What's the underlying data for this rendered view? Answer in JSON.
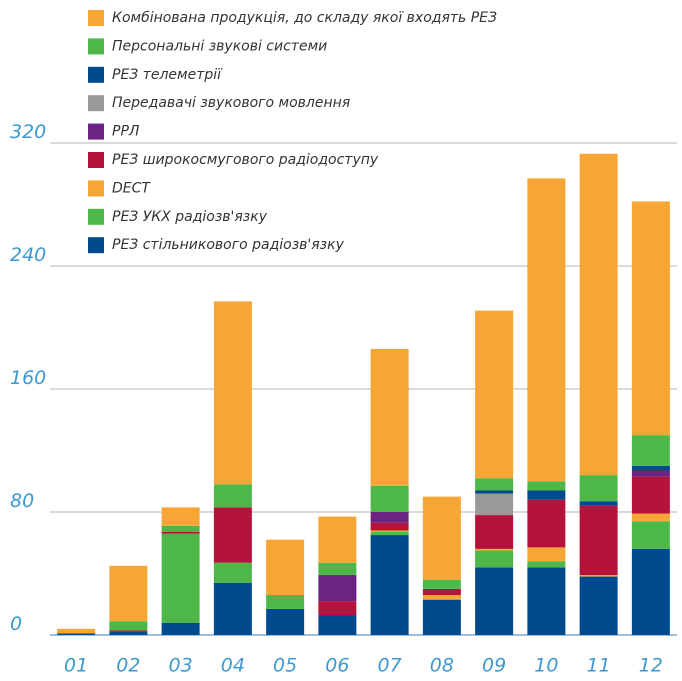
{
  "chart_data": {
    "type": "stacked_bar",
    "categories": [
      "01",
      "02",
      "03",
      "04",
      "05",
      "06",
      "07",
      "08",
      "09",
      "10",
      "11",
      "12"
    ],
    "series": [
      {
        "name": "РЕЗ стільникового радіозв'язку",
        "color": "#004b8d",
        "values": [
          1,
          2,
          8,
          34,
          17,
          13,
          65,
          23,
          44,
          44,
          38,
          56
        ]
      },
      {
        "name": "РЕЗ УКХ радіозв'язку",
        "color": "#4db848",
        "values": [
          0,
          0,
          58,
          13,
          9,
          0,
          2,
          0,
          11,
          4,
          0,
          18
        ]
      },
      {
        "name": "DECT",
        "color": "#f7a535",
        "values": [
          0,
          0,
          0,
          0,
          0,
          0,
          1,
          3,
          1,
          9,
          1,
          5
        ]
      },
      {
        "name": "РЕЗ широкосмугового радіодоступу",
        "color": "#b5123c",
        "values": [
          0,
          1,
          1,
          36,
          0,
          9,
          5,
          4,
          22,
          31,
          45,
          24
        ]
      },
      {
        "name": "РРЛ",
        "color": "#6b2481",
        "values": [
          0,
          0,
          0,
          0,
          0,
          17,
          7,
          0,
          0,
          0,
          0,
          4
        ]
      },
      {
        "name": "Передавачі звукового мовлення",
        "color": "#999999",
        "values": [
          0,
          0,
          0,
          0,
          0,
          0,
          0,
          0,
          14,
          0,
          0,
          0
        ]
      },
      {
        "name": "РЕЗ телеметрії",
        "color": "#004b8d",
        "values": [
          0,
          0,
          0,
          0,
          0,
          0,
          0,
          0,
          2,
          6,
          3,
          3
        ]
      },
      {
        "name": "Персональні звукові системи",
        "color": "#4db848",
        "values": [
          0,
          6,
          4,
          15,
          0,
          8,
          17,
          6,
          8,
          6,
          17,
          20
        ]
      },
      {
        "name": "Комбінована продукція, до складу якої входять РЕЗ",
        "color": "#f7a535",
        "values": [
          3,
          36,
          12,
          119,
          36,
          30,
          89,
          54,
          109,
          197,
          209,
          152
        ]
      }
    ],
    "ylim": [
      0,
      320
    ],
    "yticks": [
      0,
      80,
      160,
      240,
      320
    ],
    "grid": true
  }
}
